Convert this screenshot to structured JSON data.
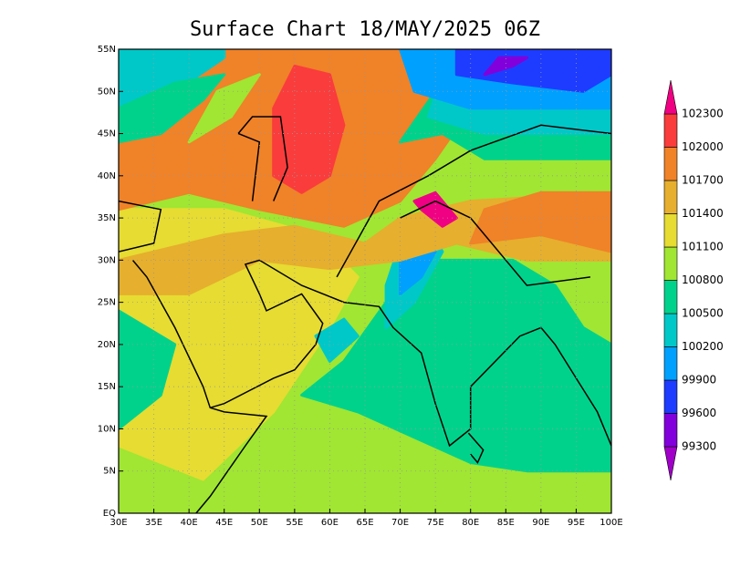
{
  "chart_data": {
    "type": "contour-map",
    "title": "Surface Chart 18/MAY/2025 06Z",
    "xlim": [
      30,
      100
    ],
    "ylim": [
      0,
      55
    ],
    "xticks": [
      {
        "value": 30,
        "label": "30E"
      },
      {
        "value": 35,
        "label": "35E"
      },
      {
        "value": 40,
        "label": "40E"
      },
      {
        "value": 45,
        "label": "45E"
      },
      {
        "value": 50,
        "label": "50E"
      },
      {
        "value": 55,
        "label": "55E"
      },
      {
        "value": 60,
        "label": "60E"
      },
      {
        "value": 65,
        "label": "65E"
      },
      {
        "value": 70,
        "label": "70E"
      },
      {
        "value": 75,
        "label": "75E"
      },
      {
        "value": 80,
        "label": "80E"
      },
      {
        "value": 85,
        "label": "85E"
      },
      {
        "value": 90,
        "label": "90E"
      },
      {
        "value": 95,
        "label": "95E"
      },
      {
        "value": 100,
        "label": "100E"
      }
    ],
    "yticks": [
      {
        "value": 0,
        "label": "EQ"
      },
      {
        "value": 5,
        "label": "5N"
      },
      {
        "value": 10,
        "label": "10N"
      },
      {
        "value": 15,
        "label": "15N"
      },
      {
        "value": 20,
        "label": "20N"
      },
      {
        "value": 25,
        "label": "25N"
      },
      {
        "value": 30,
        "label": "30N"
      },
      {
        "value": 35,
        "label": "35N"
      },
      {
        "value": 40,
        "label": "40N"
      },
      {
        "value": 45,
        "label": "45N"
      },
      {
        "value": 50,
        "label": "50N"
      },
      {
        "value": 55,
        "label": "55N"
      }
    ],
    "grid": true,
    "colorbar": {
      "levels": [
        99300,
        99600,
        99900,
        100200,
        100500,
        100800,
        101100,
        101400,
        101700,
        102000,
        102300
      ],
      "colors": [
        "#a000c8",
        "#8200dc",
        "#1e3cff",
        "#00a0ff",
        "#00c8c8",
        "#00d28c",
        "#a0e632",
        "#e6dc32",
        "#e6af2d",
        "#f08228",
        "#fa3c3c",
        "#f00082"
      ]
    }
  }
}
